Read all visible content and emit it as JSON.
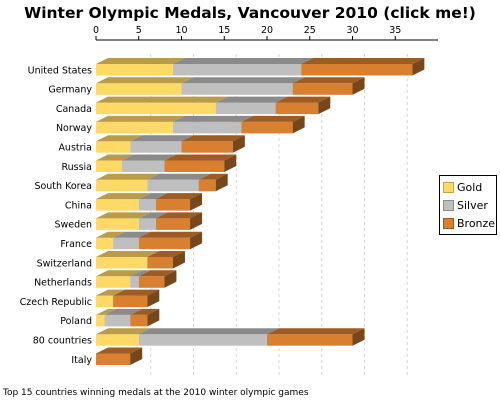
{
  "colors": {
    "gold": "#FFD966",
    "silver": "#BFBFBF",
    "bronze": "#D98030"
  },
  "chart_data": {
    "type": "bar",
    "orientation": "horizontal",
    "stacked": true,
    "title": "Winter Olympic Medals, Vancouver 2010 (click me!)",
    "caption": "Top 15 countries winning medals at the 2010 winter olympic games",
    "categories": [
      "United States",
      "Germany",
      "Canada",
      "Norway",
      "Austria",
      "Russia",
      "South Korea",
      "China",
      "Sweden",
      "France",
      "Switzerland",
      "Netherlands",
      "Czech Republic",
      "Poland",
      "80 countries",
      "Italy"
    ],
    "series": [
      {
        "name": "Gold",
        "values": [
          9,
          10,
          14,
          9,
          4,
          3,
          6,
          5,
          5,
          2,
          6,
          4,
          2,
          1,
          5,
          0
        ]
      },
      {
        "name": "Silver",
        "values": [
          15,
          13,
          7,
          8,
          6,
          5,
          6,
          2,
          2,
          3,
          0,
          1,
          0,
          3,
          15,
          0
        ]
      },
      {
        "name": "Bronze",
        "values": [
          13,
          7,
          5,
          6,
          6,
          7,
          2,
          4,
          4,
          6,
          3,
          3,
          4,
          2,
          10,
          4
        ]
      }
    ],
    "xlim": [
      0,
      40
    ],
    "xticks": [
      0,
      5,
      10,
      15,
      20,
      25,
      30,
      35
    ],
    "grid": true,
    "legend_position": "right"
  }
}
